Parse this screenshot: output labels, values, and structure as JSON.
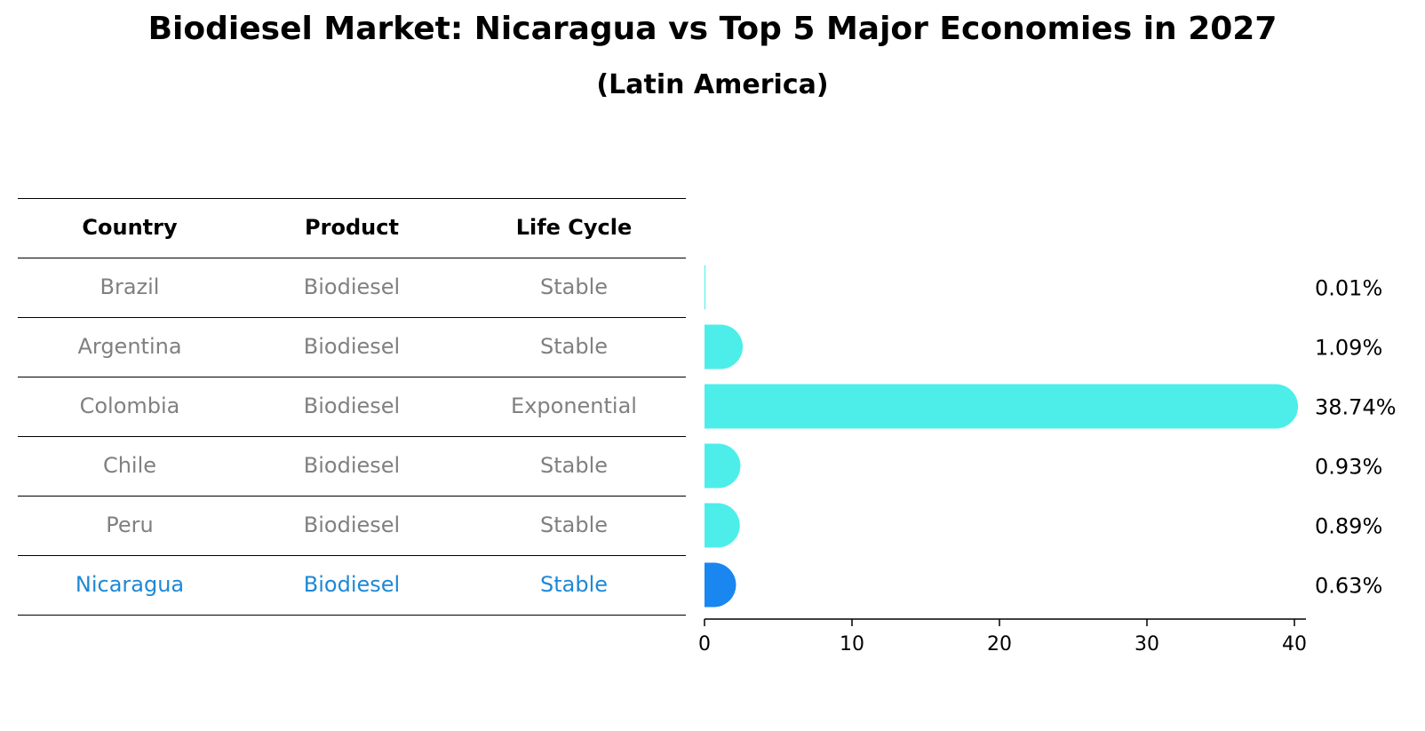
{
  "title": "Biodiesel Market: Nicaragua vs Top 5 Major Economies in 2027",
  "subtitle": "(Latin America)",
  "table": {
    "headers": [
      "Country",
      "Product",
      "Life Cycle"
    ],
    "rows": [
      [
        "Brazil",
        "Biodiesel",
        "Stable"
      ],
      [
        "Argentina",
        "Biodiesel",
        "Stable"
      ],
      [
        "Colombia",
        "Biodiesel",
        "Exponential"
      ],
      [
        "Chile",
        "Biodiesel",
        "Stable"
      ],
      [
        "Peru",
        "Biodiesel",
        "Stable"
      ],
      [
        "Nicaragua",
        "Biodiesel",
        "Stable"
      ]
    ],
    "highlight_row": 5,
    "row_text_color": "#808080",
    "highlight_text_color": "#1e88d6"
  },
  "chart_data": {
    "type": "bar",
    "orientation": "horizontal",
    "categories": [
      "Brazil",
      "Argentina",
      "Colombia",
      "Chile",
      "Peru",
      "Nicaragua"
    ],
    "values": [
      0.01,
      1.09,
      38.74,
      0.93,
      0.89,
      0.63
    ],
    "value_labels": [
      "0.01%",
      "1.09%",
      "38.74%",
      "0.93%",
      "0.89%",
      "0.63%"
    ],
    "xlim": [
      0,
      40
    ],
    "xticks": [
      0,
      10,
      20,
      30,
      40
    ],
    "xlabel": "",
    "ylabel": "",
    "colors": {
      "default": "#4deeea",
      "highlight": "#1a86f0"
    },
    "highlight_index": 5,
    "grid": false
  }
}
